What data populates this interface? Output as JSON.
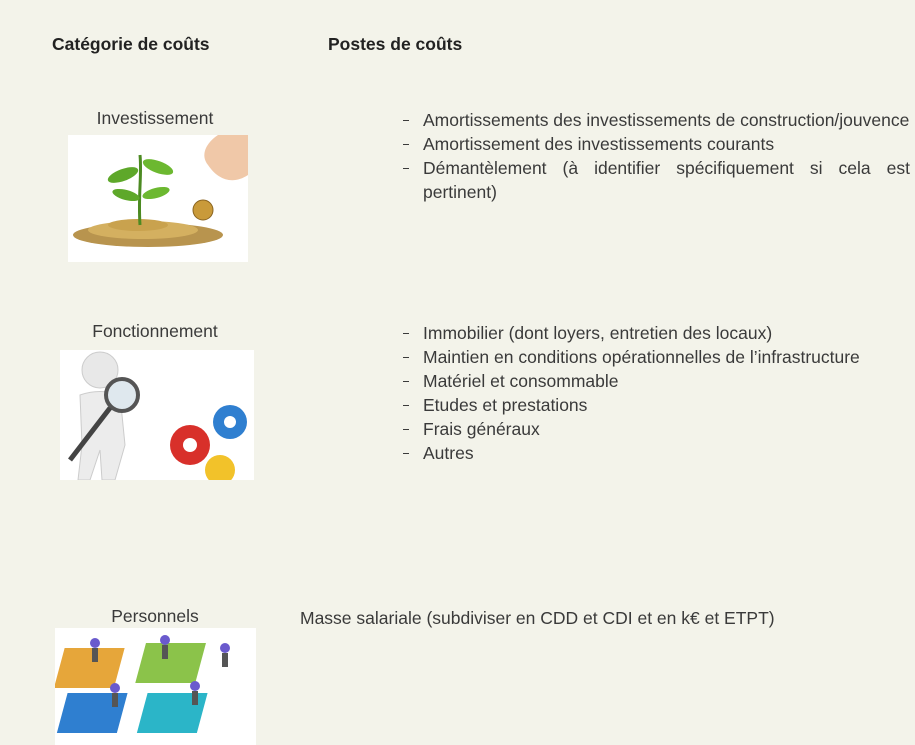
{
  "table": {
    "headers": [
      "Catégorie de coûts",
      "Postes de coûts"
    ],
    "rows": [
      {
        "category": "Investissement",
        "items": [
          "Amortissements des investissements de construction/jouvence",
          "Amortissement des investissements courants",
          "Démantèlement (à identifier spécifiquement si cela est pertinent)"
        ]
      },
      {
        "category": "Fonctionnement",
        "items": [
          "Immobilier (dont loyers, entretien des locaux)",
          "Maintien en conditions opérationnelles de l’infrastructure",
          "Matériel et consommable",
          "Etudes et prestations",
          "Frais généraux",
          "Autres"
        ]
      },
      {
        "category": "Personnels",
        "text": "Masse salariale (subdiviser en CDD et CDI et en k€ et ETPT)"
      }
    ]
  }
}
